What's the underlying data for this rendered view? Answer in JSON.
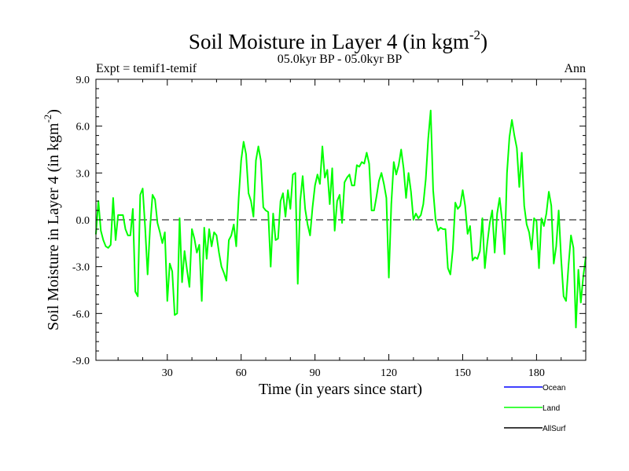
{
  "chart_data": {
    "type": "line",
    "title": "Soil Moisture in Layer 4 (in kgm",
    "title_sup": "-2",
    "title_close": ")",
    "subtitle_left": "Expt = temif1-temif",
    "subtitle_center": "05.0kyr BP - 05.0kyr BP",
    "subtitle_right": "Ann",
    "xlabel": "Time (in years since start)",
    "ylabel": "Soil Moisture in Layer 4 (in kgm",
    "ylabel_sup": "-2",
    "ylabel_close": ")",
    "xlim": [
      1,
      200
    ],
    "ylim": [
      -9,
      9
    ],
    "xticks": [
      30,
      60,
      90,
      120,
      150,
      180
    ],
    "xtick_labels": [
      "30",
      "60",
      "90",
      "120",
      "150",
      "180"
    ],
    "yticks": [
      -9,
      -6,
      -3,
      0,
      3,
      6,
      9
    ],
    "ytick_labels": [
      "-9.0",
      "-6.0",
      "-3.0",
      "0.0",
      "3.0",
      "6.0",
      "9.0"
    ],
    "reference_line": 0,
    "legend": [
      {
        "name": "Ocean",
        "color": "#0000ff"
      },
      {
        "name": "Land",
        "color": "#00ff00"
      },
      {
        "name": "AllSurf",
        "color": "#000000"
      }
    ],
    "series": [
      {
        "name": "Land",
        "color": "#00ff00",
        "x_start": 1,
        "x_step": 1,
        "values": [
          -0.9,
          1.2,
          -0.7,
          -1.3,
          -1.7,
          -1.8,
          -1.6,
          1.4,
          -1.3,
          0.3,
          0.3,
          0.3,
          -0.6,
          -1.0,
          -1.0,
          0.7,
          -4.6,
          -4.9,
          1.6,
          2.0,
          -0.5,
          -3.5,
          -0.5,
          1.6,
          1.3,
          -0.2,
          -0.8,
          -1.5,
          -0.8,
          -5.2,
          -2.8,
          -3.3,
          -6.1,
          -6.0,
          0.1,
          -4.0,
          -2.0,
          -3.2,
          -4.3,
          -0.6,
          -1.2,
          -2.1,
          -1.6,
          -5.2,
          -0.5,
          -2.5,
          -0.6,
          -1.7,
          -0.8,
          -1.0,
          -2.1,
          -3.0,
          -3.4,
          -3.9,
          -1.3,
          -1.0,
          -0.3,
          -1.7,
          1.4,
          3.8,
          5.0,
          4.2,
          1.7,
          1.2,
          0.2,
          3.8,
          4.7,
          3.8,
          0.8,
          0.6,
          0.5,
          -3.0,
          0.4,
          -1.3,
          -1.2,
          1.2,
          1.7,
          0.2,
          1.9,
          0.7,
          2.9,
          3.0,
          -4.1,
          1.2,
          2.8,
          0.7,
          -0.3,
          -1.0,
          0.8,
          2.2,
          2.9,
          2.3,
          4.7,
          2.7,
          3.2,
          1.0,
          3.3,
          -0.7,
          1.2,
          1.6,
          -0.2,
          2.4,
          2.7,
          2.9,
          2.2,
          2.2,
          3.5,
          3.4,
          3.7,
          3.6,
          4.3,
          3.6,
          0.6,
          0.6,
          1.5,
          2.5,
          3.0,
          2.3,
          1.4,
          -3.7,
          1.0,
          3.7,
          2.9,
          3.5,
          4.5,
          3.3,
          1.4,
          3.0,
          1.8,
          0.0,
          0.4,
          0.1,
          0.3,
          1.0,
          2.6,
          5.2,
          7.0,
          1.9,
          0.0,
          -0.7,
          -0.5,
          -0.6,
          -0.6,
          -3.1,
          -3.5,
          -1.9,
          1.1,
          0.7,
          0.9,
          1.9,
          0.9,
          -0.9,
          -0.4,
          -2.6,
          -2.4,
          -2.5,
          -2.0,
          0.1,
          -3.1,
          -1.5,
          -0.2,
          0.6,
          -2.1,
          0.4,
          1.4,
          0.0,
          -2.2,
          3.0,
          5.3,
          6.4,
          5.4,
          4.6,
          2.1,
          4.3,
          0.9,
          -0.3,
          -0.8,
          -1.9,
          0.1,
          -0.1,
          -3.1,
          0.1,
          -0.4,
          0.4,
          1.8,
          0.9,
          -2.8,
          -1.7,
          0.6,
          -2.5,
          -4.9,
          -5.2,
          -2.9,
          -1.0,
          -1.8,
          -6.9,
          -3.2,
          -5.3,
          -3.6,
          -2.4
        ]
      }
    ]
  }
}
